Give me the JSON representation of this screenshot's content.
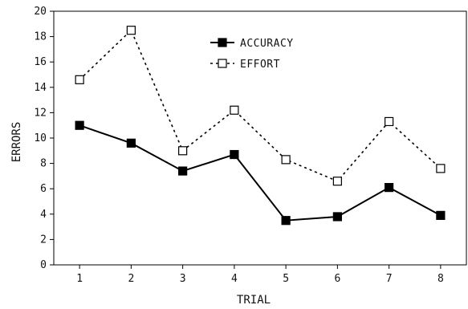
{
  "chart_data": {
    "type": "line",
    "title": "",
    "xlabel": "TRIAL",
    "ylabel": "ERRORS",
    "x": [
      1,
      2,
      3,
      4,
      5,
      6,
      7,
      8
    ],
    "xlim": [
      0.5,
      8.5
    ],
    "ylim": [
      0,
      20
    ],
    "yticks": [
      0,
      2,
      4,
      6,
      8,
      10,
      12,
      14,
      16,
      18,
      20
    ],
    "grid": false,
    "legend": "top-center",
    "series": [
      {
        "name": "ACCURACY",
        "values": [
          11.0,
          9.6,
          7.4,
          8.7,
          3.5,
          3.8,
          6.1,
          3.9
        ],
        "line_style": "solid",
        "marker": "filled-square",
        "color": "#000000"
      },
      {
        "name": "EFFORT",
        "values": [
          14.6,
          18.5,
          9.0,
          12.2,
          8.3,
          6.6,
          11.3,
          7.6
        ],
        "line_style": "dotted",
        "marker": "open-square",
        "color": "#000000"
      }
    ]
  }
}
